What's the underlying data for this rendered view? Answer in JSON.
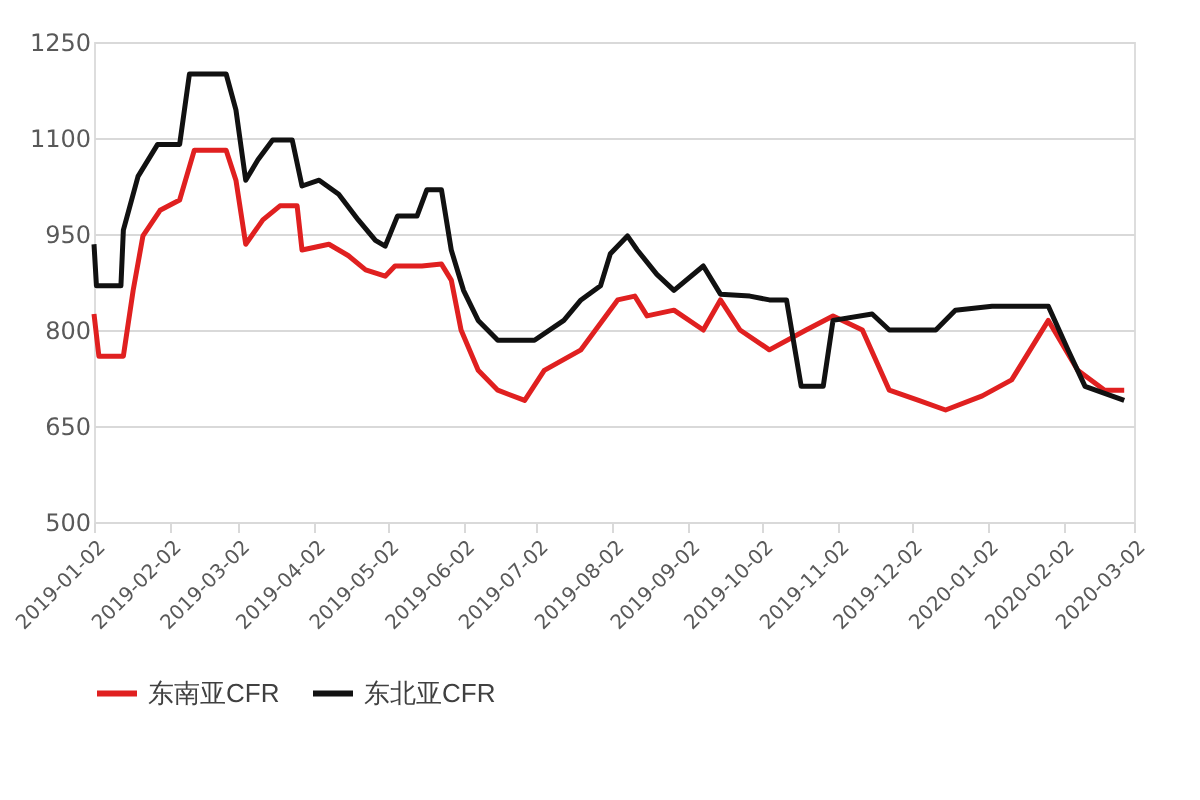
{
  "chart_data": {
    "type": "line",
    "x": [
      "2019-01-02",
      "2019-01-03",
      "2019-01-13",
      "2019-01-14",
      "2019-01-20",
      "2019-01-28",
      "2019-02-06",
      "2019-02-10",
      "2019-02-25",
      "2019-03-01",
      "2019-03-05",
      "2019-03-10",
      "2019-03-16",
      "2019-03-24",
      "2019-03-28",
      "2019-04-04",
      "2019-04-12",
      "2019-04-20",
      "2019-04-27",
      "2019-05-01",
      "2019-05-06",
      "2019-05-14",
      "2019-05-18",
      "2019-05-24",
      "2019-05-28",
      "2019-06-02",
      "2019-06-08",
      "2019-06-16",
      "2019-07-01",
      "2019-07-13",
      "2019-07-20",
      "2019-07-28",
      "2019-08-01",
      "2019-08-08",
      "2019-08-12",
      "2019-08-20",
      "2019-08-27",
      "2019-09-08",
      "2019-09-15",
      "2019-09-27",
      "2019-10-05",
      "2019-10-12",
      "2019-10-18",
      "2019-10-27",
      "2019-10-31",
      "2019-11-16",
      "2019-11-23",
      "2019-12-12",
      "2019-12-20",
      "2020-01-04",
      "2020-01-27",
      "2020-02-04",
      "2020-02-11",
      "2020-02-27"
    ],
    "series": [
      {
        "name": "东南亚CFR",
        "color": "#e02020",
        "x": [
          "2019-01-02",
          "2019-01-04",
          "2019-01-14",
          "2019-01-18",
          "2019-01-22",
          "2019-01-29",
          "2019-02-06",
          "2019-02-12",
          "2019-02-25",
          "2019-03-01",
          "2019-03-05",
          "2019-03-12",
          "2019-03-19",
          "2019-03-26",
          "2019-03-28",
          "2019-04-08",
          "2019-04-16",
          "2019-04-23",
          "2019-05-01",
          "2019-05-05",
          "2019-05-16",
          "2019-05-24",
          "2019-05-28",
          "2019-06-01",
          "2019-06-08",
          "2019-06-16",
          "2019-06-27",
          "2019-07-05",
          "2019-07-20",
          "2019-08-04",
          "2019-08-11",
          "2019-08-16",
          "2019-08-27",
          "2019-09-08",
          "2019-09-15",
          "2019-09-23",
          "2019-10-05",
          "2019-10-20",
          "2019-10-31",
          "2019-11-12",
          "2019-11-23",
          "2019-12-05",
          "2019-12-16",
          "2019-12-31",
          "2020-01-12",
          "2020-01-27",
          "2020-02-08",
          "2020-02-19",
          "2020-02-27"
        ],
        "values": [
          825,
          759,
          759,
          862,
          947,
          987,
          1003,
          1081,
          1081,
          1034,
          934,
          972,
          994,
          994,
          925,
          934,
          916,
          894,
          884,
          900,
          900,
          903,
          878,
          800,
          737,
          706,
          690,
          737,
          769,
          847,
          853,
          822,
          831,
          800,
          847,
          800,
          769,
          800,
          822,
          800,
          706,
          690,
          675,
          697,
          722,
          815,
          737,
          706,
          706
        ]
      },
      {
        "name": "东北亚CFR",
        "color": "#111111",
        "values": [
          934,
          869,
          869,
          956,
          1040,
          1090,
          1090,
          1200,
          1200,
          1144,
          1034,
          1066,
          1097,
          1097,
          1025,
          1034,
          1012,
          972,
          940,
          931,
          978,
          978,
          1019,
          1019,
          925,
          862,
          815,
          784,
          784,
          815,
          847,
          869,
          919,
          947,
          925,
          887,
          862,
          900,
          856,
          853,
          847,
          847,
          712,
          712,
          815,
          825,
          800,
          800,
          831,
          837,
          837,
          769,
          712,
          690
        ]
      }
    ],
    "xlim": [
      "2019-01-02",
      "2020-03-02"
    ],
    "xticks": [
      "2019-01-02",
      "2019-02-02",
      "2019-03-02",
      "2019-04-02",
      "2019-05-02",
      "2019-06-02",
      "2019-07-02",
      "2019-08-02",
      "2019-09-02",
      "2019-10-02",
      "2019-11-02",
      "2019-12-02",
      "2020-01-02",
      "2020-02-02",
      "2020-03-02"
    ],
    "ylim": [
      500,
      1250
    ],
    "yticks": [
      500,
      650,
      800,
      950,
      1100,
      1250
    ],
    "grid": "y",
    "legend": "bottom"
  }
}
